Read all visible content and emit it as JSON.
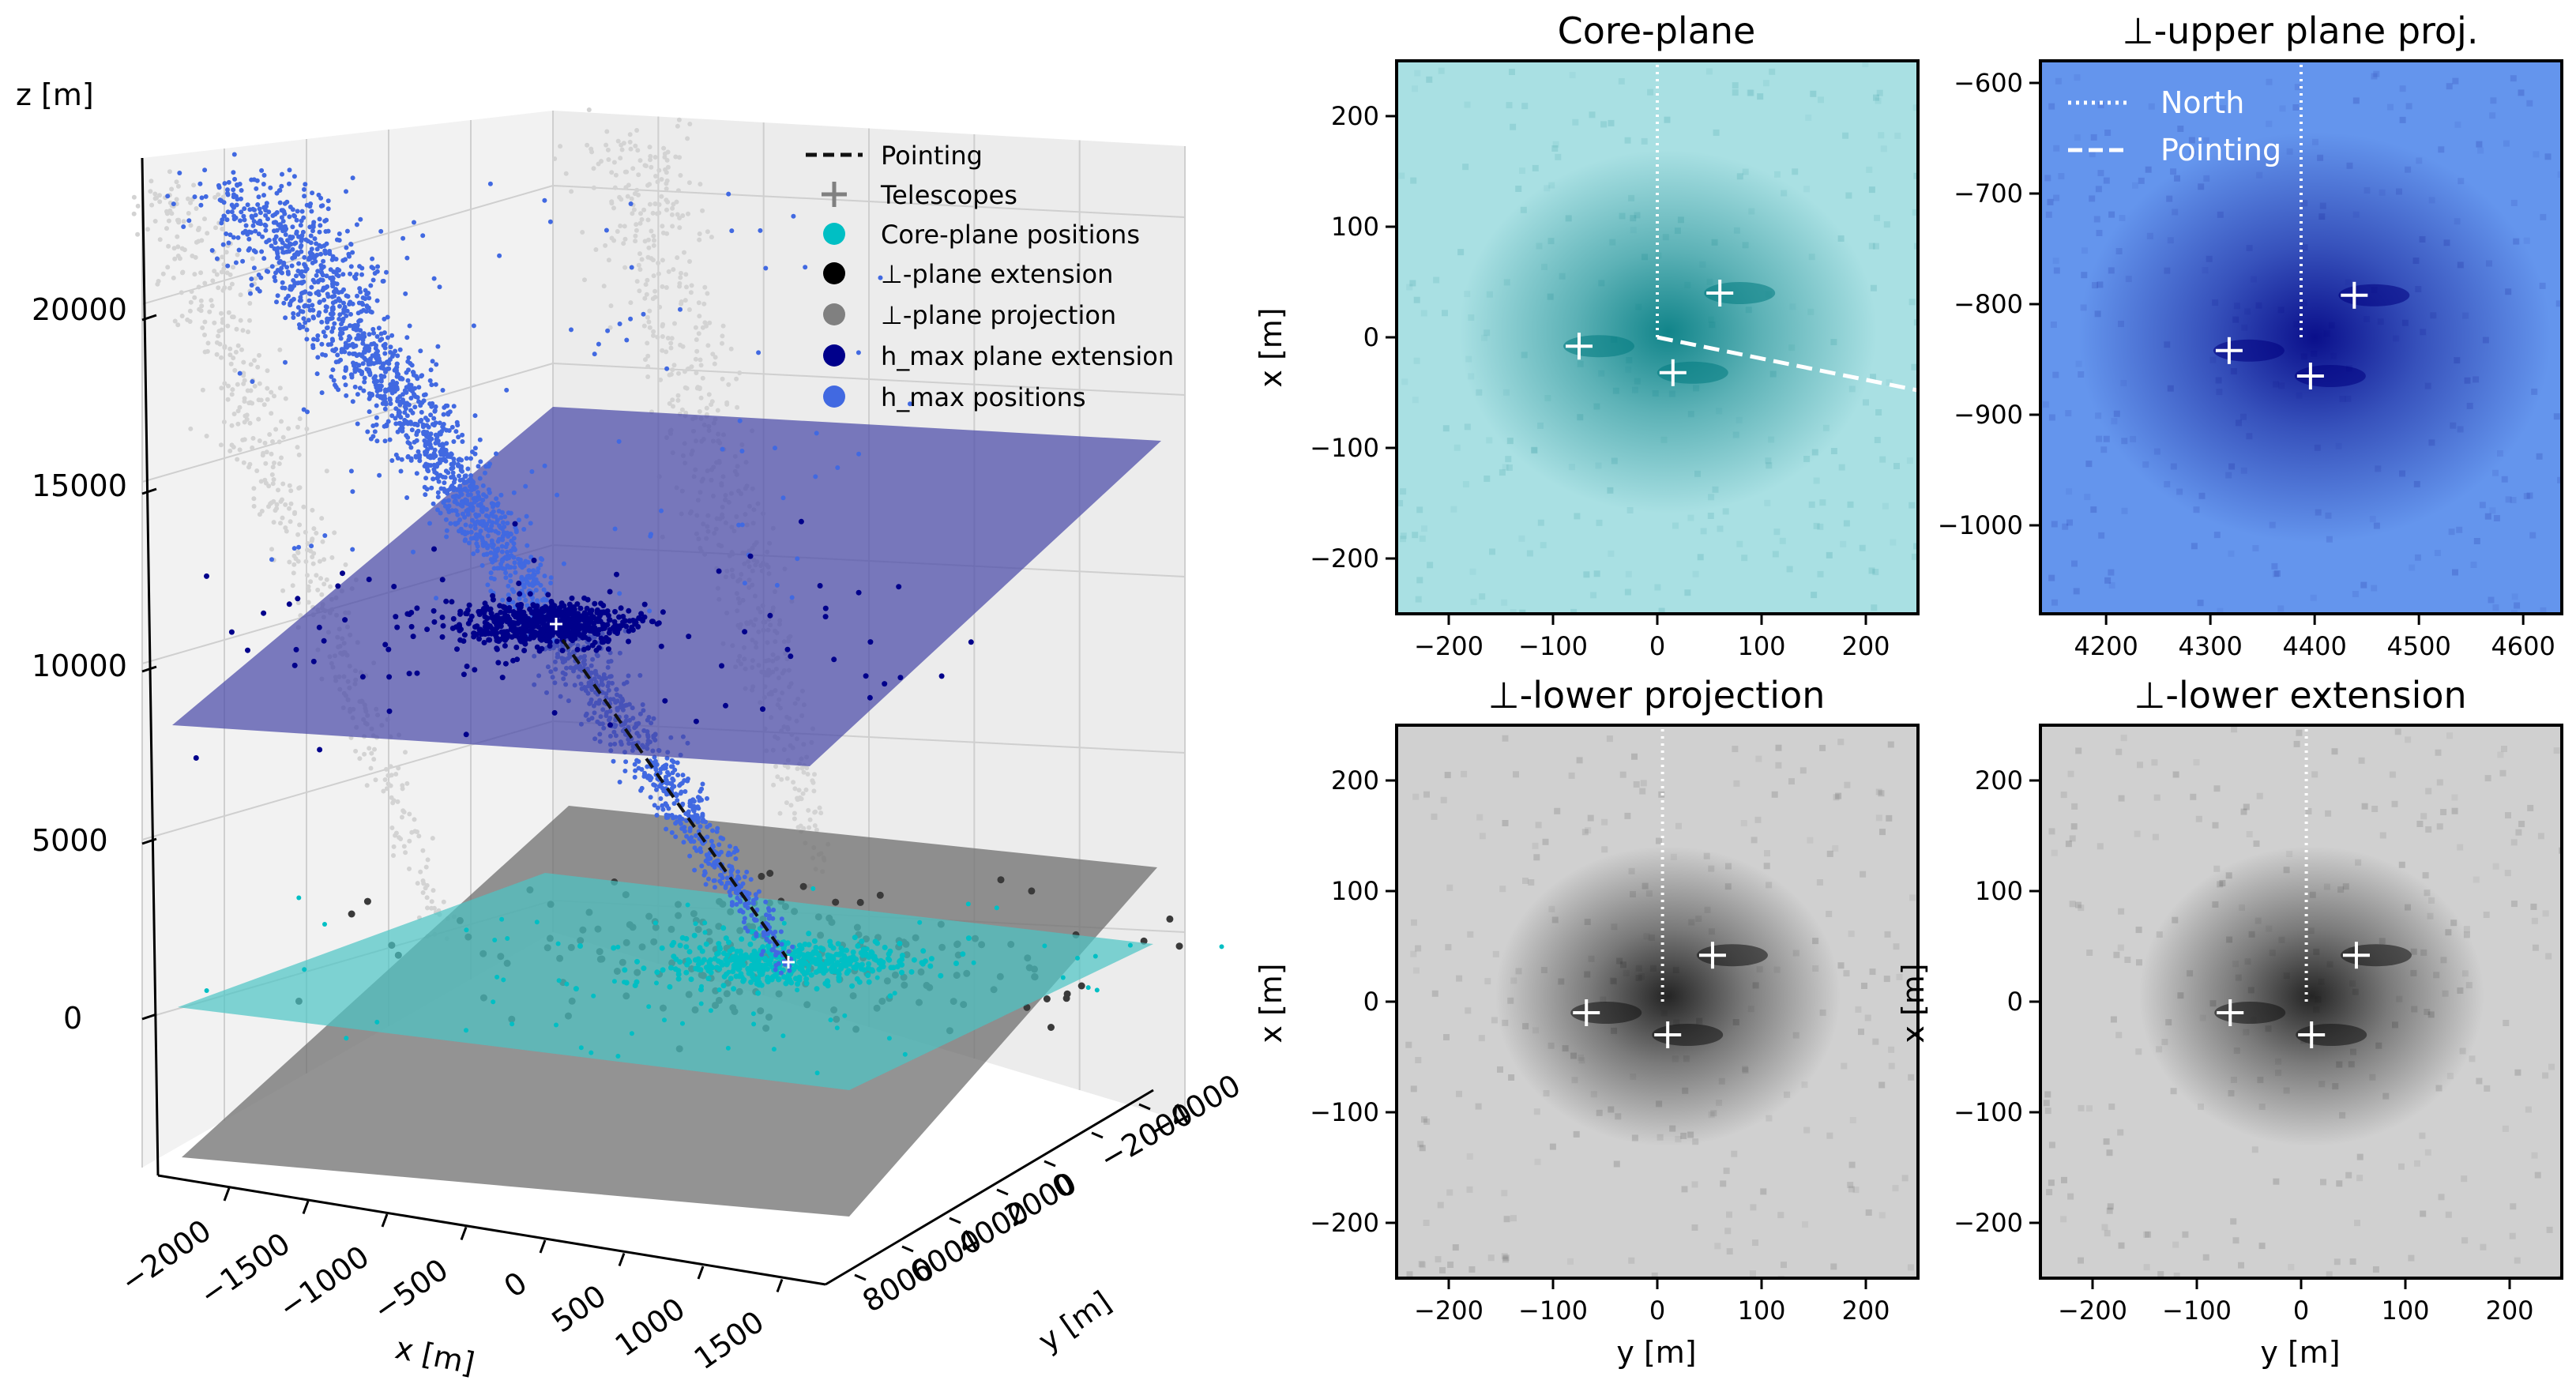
{
  "colors": {
    "pointing": "#111111",
    "telescopes": "#808080",
    "core_plane": "#00bfc4",
    "perp_extension": "#000000",
    "perp_projection": "#808080",
    "hmax_extension": "#00008b",
    "hmax_positions": "#4169e1",
    "cloud_shadow": "#d3d3d3",
    "panel_core_bg": "#a9e0e3",
    "panel_core_dark": "#007a80",
    "panel_upper_bg": "#6495ed",
    "panel_upper_dark": "#000080",
    "panel_lower_bg": "#d0d0d0",
    "panel_lower_dark": "#111111"
  },
  "chart_data": [
    {
      "type": "scatter",
      "title": "",
      "xlabel": "x [m]",
      "ylabel": "y [m]",
      "zlabel": "z [m]",
      "xlim": [
        -2300,
        1800
      ],
      "ylim": [
        -5000,
        9000
      ],
      "zlim": [
        -2500,
        23000
      ],
      "x_ticks": [
        "−2000",
        "−1500",
        "−1000",
        "−500",
        "0",
        "500",
        "1000",
        "1500"
      ],
      "y_ticks": [
        "−4000",
        "−2000",
        "0",
        "2000",
        "4000",
        "6000",
        "8000"
      ],
      "z_ticks": [
        "0",
        "5000",
        "10000",
        "15000",
        "20000"
      ],
      "legend": {
        "placement": "top-right",
        "entries": [
          {
            "label": "Pointing",
            "marker": "dashed-line",
            "color": "#111111"
          },
          {
            "label": "Telescopes",
            "marker": "plus",
            "color": "#808080"
          },
          {
            "label": "Core-plane positions",
            "marker": "dot",
            "color": "#00bfc4"
          },
          {
            "label": "⊥-plane extension",
            "marker": "dot",
            "color": "#000000"
          },
          {
            "label": "⊥-plane projection",
            "marker": "dot",
            "color": "#808080"
          },
          {
            "label": "h_max plane extension",
            "marker": "dot",
            "color": "#00008b"
          },
          {
            "label": "h_max positions",
            "marker": "dot",
            "color": "#4169e1"
          }
        ]
      },
      "planes": [
        {
          "name": "h_max plane",
          "z": 10800,
          "color": "#4a4aa8"
        },
        {
          "name": "perp plane",
          "z": -1500,
          "color": "#6f6f6f"
        },
        {
          "name": "core plane",
          "z": 0,
          "color": "#4cc4c4"
        }
      ],
      "pointing_line": {
        "from": [
          0,
          0,
          10800
        ],
        "to": [
          0,
          0,
          0
        ]
      },
      "grid": true
    },
    {
      "type": "heatmap",
      "title": "Core-plane",
      "xlabel": "",
      "ylabel": "x [m]",
      "xlim": [
        -250,
        250
      ],
      "ylim": [
        -250,
        250
      ],
      "x_ticks": [
        "−200",
        "−100",
        "0",
        "100",
        "200"
      ],
      "y_ticks": [
        "−200",
        "−100",
        "0",
        "100",
        "200"
      ],
      "telescopes": [
        [
          -75,
          -8
        ],
        [
          15,
          -32
        ],
        [
          60,
          40
        ]
      ],
      "north_line": {
        "x": 0,
        "y_from": 0,
        "y_to": 250
      },
      "pointing_line": {
        "from": [
          0,
          0
        ],
        "to": [
          250,
          -48
        ]
      },
      "shower_center": [
        10,
        5
      ]
    },
    {
      "type": "heatmap",
      "title": "⊥-upper plane proj.",
      "xlabel": "",
      "ylabel": "",
      "xlim": [
        4137,
        4637
      ],
      "ylim": [
        -1080,
        -580
      ],
      "x_ticks": [
        "4200",
        "4300",
        "4400",
        "4500",
        "4600"
      ],
      "y_ticks": [
        "−600",
        "−700",
        "−800",
        "−900",
        "−1000"
      ],
      "telescopes": [
        [
          4318,
          -842
        ],
        [
          4396,
          -865
        ],
        [
          4438,
          -792
        ]
      ],
      "north_line": {
        "x": 4387,
        "y_from": -830,
        "y_to": -580
      },
      "shower_center": [
        4400,
        -830
      ],
      "legend": {
        "placement": "top-left",
        "entries": [
          {
            "label": "North",
            "style": "dotted"
          },
          {
            "label": "Pointing",
            "style": "dashed"
          }
        ]
      }
    },
    {
      "type": "heatmap",
      "title": "⊥-lower projection",
      "xlabel": "y [m]",
      "ylabel": "x [m]",
      "xlim": [
        -250,
        250
      ],
      "ylim": [
        -250,
        250
      ],
      "x_ticks": [
        "−200",
        "−100",
        "0",
        "100",
        "200"
      ],
      "y_ticks": [
        "−200",
        "−100",
        "0",
        "100",
        "200"
      ],
      "telescopes": [
        [
          -68,
          -10
        ],
        [
          10,
          -30
        ],
        [
          53,
          42
        ]
      ],
      "north_line": {
        "x": 5,
        "y_from": 0,
        "y_to": 250
      },
      "shower_center": [
        10,
        5
      ]
    },
    {
      "type": "heatmap",
      "title": "⊥-lower extension",
      "xlabel": "y [m]",
      "ylabel": "x [m]",
      "xlim": [
        -250,
        250
      ],
      "ylim": [
        -250,
        250
      ],
      "x_ticks": [
        "−200",
        "−100",
        "0",
        "100",
        "200"
      ],
      "y_ticks": [
        "−200",
        "−100",
        "0",
        "100",
        "200"
      ],
      "telescopes": [
        [
          -68,
          -10
        ],
        [
          10,
          -30
        ],
        [
          53,
          42
        ]
      ],
      "north_line": {
        "x": 5,
        "y_from": 0,
        "y_to": 250
      },
      "shower_center": [
        10,
        5
      ]
    }
  ]
}
